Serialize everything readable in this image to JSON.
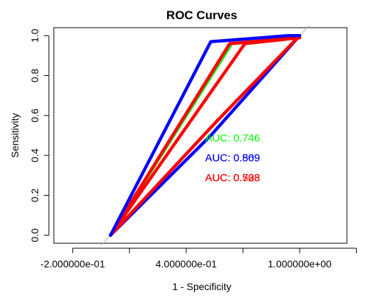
{
  "chart_data": {
    "type": "line",
    "title": "ROC Curves",
    "xlabel": "1 - Specificity",
    "ylabel": "Sensitivity",
    "xlim": [
      -0.3,
      1.25
    ],
    "ylim": [
      -0.04,
      1.04
    ],
    "x_ticks": [
      -0.2,
      0.1,
      0.4,
      0.7,
      1.0,
      1.3
    ],
    "x_tick_labels": [
      "-2.000000e-01",
      "",
      "4.000000e-01",
      "",
      "1.000000e+00",
      ""
    ],
    "y_ticks": [
      0.0,
      0.2,
      0.4,
      0.6,
      0.8,
      1.0
    ],
    "y_tick_labels": [
      "0.0",
      "0.2",
      "0.4",
      "0.6",
      "0.8",
      "1.0"
    ],
    "diagonal": {
      "x": [
        -0.05,
        1.05
      ],
      "y": [
        -0.05,
        1.05
      ],
      "color": "#aaaaaa"
    },
    "series": [
      {
        "color": "#0000ff",
        "points": [
          [
            0.0,
            0.0
          ],
          [
            0.53,
            0.5
          ],
          [
            1.0,
            1.0
          ]
        ]
      },
      {
        "color": "#ff0000",
        "points": [
          [
            0.0,
            0.0
          ],
          [
            0.56,
            0.57
          ],
          [
            1.0,
            1.0
          ]
        ]
      },
      {
        "color": "#00ff00",
        "points": [
          [
            0.0,
            0.0
          ],
          [
            0.64,
            0.96
          ],
          [
            1.0,
            0.99
          ]
        ]
      },
      {
        "color": "#ff0000",
        "points": [
          [
            0.0,
            0.0
          ],
          [
            0.63,
            0.96
          ],
          [
            1.0,
            0.99
          ]
        ]
      },
      {
        "color": "#ff0000",
        "points": [
          [
            0.0,
            0.0
          ],
          [
            0.71,
            0.96
          ],
          [
            1.0,
            0.99
          ]
        ]
      },
      {
        "color": "#0000ff",
        "points": [
          [
            0.0,
            0.0
          ],
          [
            0.53,
            0.97
          ],
          [
            0.94,
            1.0
          ],
          [
            1.0,
            1.0
          ]
        ]
      }
    ],
    "annotations": [
      {
        "text": "AUC: 0.746",
        "color": "#00ff00",
        "x": 0.5,
        "y": 0.47
      },
      {
        "text": "AUC: 0.569",
        "color": "#0000ff",
        "x": 0.5,
        "y": 0.37
      },
      {
        "text": "AUC: 0.809",
        "color": "#0000ff",
        "x": 0.5,
        "y": 0.37
      },
      {
        "text": "AUC: 0.523",
        "color": "#ff0000",
        "x": 0.5,
        "y": 0.27
      },
      {
        "text": "AUC: 0.708",
        "color": "#ff0000",
        "x": 0.5,
        "y": 0.27
      },
      {
        "text": "AUC: 0.738",
        "color": "#ff0000",
        "x": 0.5,
        "y": 0.27
      }
    ]
  }
}
